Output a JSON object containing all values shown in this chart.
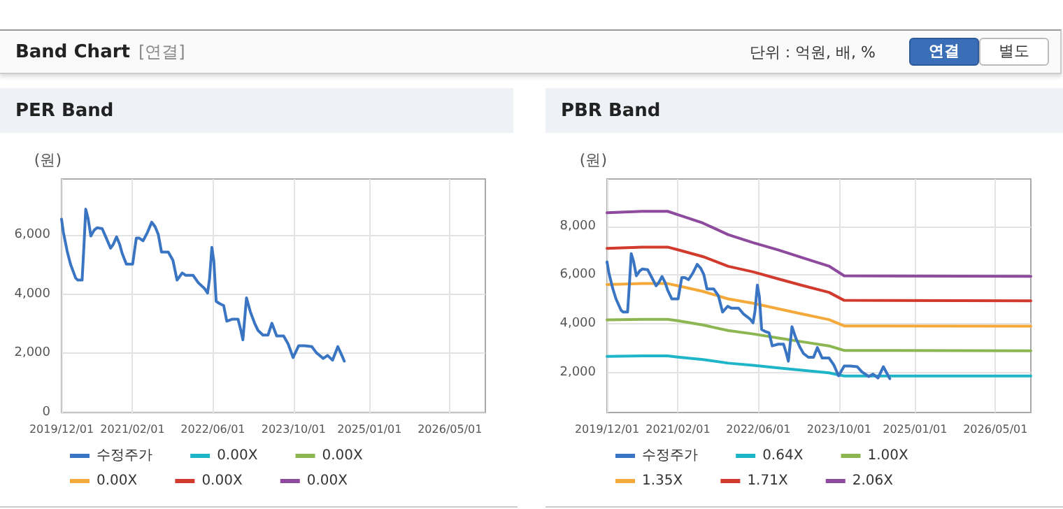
{
  "chart_data": [
    {
      "type": "other",
      "title": "Band Chart",
      "subtitle": "[연결]",
      "annotations": [
        "단위 : 억원, 배, %",
        "연결",
        "별도"
      ]
    },
    {
      "type": "line",
      "title": "PER Band",
      "ylabel": "(원)",
      "grid": true,
      "legend": "bottom",
      "marker": "none",
      "xlim": [
        "2019-12-01",
        "2026-12-01"
      ],
      "xticks": [
        {
          "value": "2019-12-01",
          "label": "2019/12/01"
        },
        {
          "value": "2021-02-01",
          "label": "2021/02/01"
        },
        {
          "value": "2022-06-01",
          "label": "2022/06/01"
        },
        {
          "value": "2023-10-01",
          "label": "2023/10/01"
        },
        {
          "value": "2025-01-01",
          "label": "2025/01/01"
        },
        {
          "value": "2026-05-01",
          "label": "2026/05/01"
        }
      ],
      "ylim": [
        0,
        7900
      ],
      "yticks": [
        {
          "value": 0,
          "label": "0"
        },
        {
          "value": 2000,
          "label": "2,000"
        },
        {
          "value": 4000,
          "label": "4,000"
        },
        {
          "value": 6000,
          "label": "6,000"
        }
      ],
      "series": [
        {
          "name": "수정주가",
          "color": "#3a75c4",
          "x": [
            "2019-12-01",
            "2019-12-12",
            "2020-01-04",
            "2020-01-24",
            "2020-02-24",
            "2020-03-08",
            "2020-04-03",
            "2020-04-14",
            "2020-04-25",
            "2020-05-09",
            "2020-05-26",
            "2020-06-15",
            "2020-07-02",
            "2020-08-02",
            "2020-08-24",
            "2020-09-22",
            "2020-10-09",
            "2020-10-28",
            "2020-11-15",
            "2020-12-01",
            "2020-12-26",
            "2021-02-02",
            "2021-02-24",
            "2021-03-14",
            "2021-04-06",
            "2021-05-03",
            "2021-05-28",
            "2021-06-18",
            "2021-07-07",
            "2021-07-26",
            "2021-09-05",
            "2021-10-03",
            "2021-10-28",
            "2021-11-28",
            "2021-12-20",
            "2022-02-02",
            "2022-03-05",
            "2022-04-11",
            "2022-04-30",
            "2022-05-12",
            "2022-05-26",
            "2022-06-07",
            "2022-06-21",
            "2022-07-10",
            "2022-08-05",
            "2022-08-24",
            "2022-09-28",
            "2022-10-31",
            "2022-11-17",
            "2022-11-29",
            "2022-12-21",
            "2023-01-13",
            "2023-02-08",
            "2023-02-28",
            "2023-03-30",
            "2023-04-30",
            "2023-05-23",
            "2023-06-21",
            "2023-08-02",
            "2023-08-30",
            "2023-09-28",
            "2023-11-01",
            "2023-12-07",
            "2024-01-19",
            "2024-02-16",
            "2024-03-28",
            "2024-04-23",
            "2024-05-23",
            "2024-06-24",
            "2024-07-16",
            "2024-08-02"
          ],
          "values": [
            6540,
            6100,
            5460,
            5020,
            4550,
            4480,
            4480,
            5620,
            6880,
            6570,
            5970,
            6170,
            6250,
            6220,
            5940,
            5560,
            5700,
            5940,
            5700,
            5380,
            5020,
            5020,
            5900,
            5900,
            5810,
            6100,
            6440,
            6280,
            6020,
            5430,
            5430,
            5150,
            4480,
            4720,
            4640,
            4640,
            4390,
            4200,
            4040,
            4520,
            5590,
            5120,
            3760,
            3690,
            3620,
            3090,
            3160,
            3160,
            2780,
            2460,
            3880,
            3410,
            3020,
            2780,
            2620,
            2620,
            3020,
            2590,
            2590,
            2310,
            1860,
            2260,
            2260,
            2230,
            2020,
            1830,
            1930,
            1770,
            2230,
            1960,
            1740
          ]
        },
        {
          "name": "0.00X",
          "color": "#1fb5c8"
        },
        {
          "name": "0.00X",
          "color": "#8cb652"
        },
        {
          "name": "0.00X",
          "color": "#f5a93a"
        },
        {
          "name": "0.00X",
          "color": "#d13a2c"
        },
        {
          "name": "0.00X",
          "color": "#8e4a9c"
        }
      ]
    },
    {
      "type": "line",
      "title": "PBR Band",
      "ylabel": "(원)",
      "grid": true,
      "legend": "bottom",
      "marker": "none",
      "xlim": [
        "2019-12-01",
        "2026-12-01"
      ],
      "xticks": [
        {
          "value": "2019-12-01",
          "label": "2019/12/01"
        },
        {
          "value": "2021-02-01",
          "label": "2021/02/01"
        },
        {
          "value": "2022-06-01",
          "label": "2022/06/01"
        },
        {
          "value": "2023-10-01",
          "label": "2023/10/01"
        },
        {
          "value": "2025-01-01",
          "label": "2025/01/01"
        },
        {
          "value": "2026-05-01",
          "label": "2026/05/01"
        }
      ],
      "ylim": [
        350,
        9950
      ],
      "yticks": [
        {
          "value": 2000,
          "label": "2,000"
        },
        {
          "value": 4000,
          "label": "4,000"
        },
        {
          "value": 6000,
          "label": "6,000"
        },
        {
          "value": 8000,
          "label": "8,000"
        }
      ],
      "series": [
        {
          "name": "수정주가",
          "color": "#3a75c4",
          "x": [
            "2019-12-01",
            "2019-12-12",
            "2020-01-04",
            "2020-01-24",
            "2020-02-24",
            "2020-03-08",
            "2020-04-03",
            "2020-04-14",
            "2020-04-25",
            "2020-05-09",
            "2020-05-26",
            "2020-06-15",
            "2020-07-02",
            "2020-08-02",
            "2020-08-24",
            "2020-09-22",
            "2020-10-09",
            "2020-10-28",
            "2020-11-15",
            "2020-12-01",
            "2020-12-26",
            "2021-02-02",
            "2021-02-24",
            "2021-03-14",
            "2021-04-06",
            "2021-05-03",
            "2021-05-28",
            "2021-06-18",
            "2021-07-07",
            "2021-07-26",
            "2021-09-05",
            "2021-10-03",
            "2021-10-28",
            "2021-11-28",
            "2021-12-20",
            "2022-02-02",
            "2022-03-05",
            "2022-04-11",
            "2022-04-30",
            "2022-05-12",
            "2022-05-26",
            "2022-06-07",
            "2022-06-21",
            "2022-07-10",
            "2022-08-05",
            "2022-08-24",
            "2022-09-28",
            "2022-10-31",
            "2022-11-17",
            "2022-11-29",
            "2022-12-21",
            "2023-01-13",
            "2023-02-08",
            "2023-02-28",
            "2023-03-30",
            "2023-04-30",
            "2023-05-23",
            "2023-06-21",
            "2023-08-02",
            "2023-08-30",
            "2023-09-28",
            "2023-11-01",
            "2023-12-07",
            "2024-01-19",
            "2024-02-16",
            "2024-03-28",
            "2024-04-23",
            "2024-05-23",
            "2024-06-24",
            "2024-07-16",
            "2024-08-02"
          ],
          "values": [
            6540,
            6100,
            5460,
            5020,
            4550,
            4480,
            4480,
            5620,
            6880,
            6570,
            5970,
            6170,
            6250,
            6220,
            5940,
            5560,
            5700,
            5940,
            5700,
            5380,
            5020,
            5020,
            5900,
            5900,
            5810,
            6100,
            6440,
            6280,
            6020,
            5430,
            5430,
            5150,
            4480,
            4720,
            4640,
            4640,
            4390,
            4200,
            4040,
            4520,
            5590,
            5120,
            3760,
            3690,
            3620,
            3090,
            3160,
            3160,
            2780,
            2460,
            3880,
            3410,
            3020,
            2780,
            2620,
            2620,
            3020,
            2590,
            2590,
            2310,
            1860,
            2260,
            2260,
            2230,
            2020,
            1830,
            1930,
            1770,
            2230,
            1960,
            1740
          ]
        },
        {
          "name": "0.64X",
          "color": "#1fb5c8",
          "x": [
            "2019-12-01",
            "2020-07-01",
            "2020-12-01",
            "2021-02-01",
            "2021-07-01",
            "2021-12-01",
            "2022-05-01",
            "2022-10-01",
            "2023-03-01",
            "2023-08-01",
            "2023-11-01",
            "2026-12-01"
          ],
          "values": [
            2660,
            2680,
            2680,
            2630,
            2530,
            2380,
            2290,
            2180,
            2080,
            1980,
            1850,
            1850
          ]
        },
        {
          "name": "1.00X",
          "color": "#8cb652",
          "x": [
            "2019-12-01",
            "2020-07-01",
            "2020-12-01",
            "2021-02-01",
            "2021-07-01",
            "2021-12-01",
            "2022-05-01",
            "2022-10-01",
            "2023-03-01",
            "2023-08-01",
            "2023-11-01",
            "2026-12-01"
          ],
          "values": [
            4160,
            4180,
            4180,
            4120,
            3950,
            3720,
            3580,
            3410,
            3250,
            3090,
            2900,
            2890
          ]
        },
        {
          "name": "1.35X",
          "color": "#f5a93a",
          "x": [
            "2019-12-01",
            "2020-07-01",
            "2020-12-01",
            "2021-02-01",
            "2021-07-01",
            "2021-12-01",
            "2022-05-01",
            "2022-10-01",
            "2023-03-01",
            "2023-08-01",
            "2023-11-01",
            "2026-12-01"
          ],
          "values": [
            5610,
            5650,
            5650,
            5560,
            5330,
            5020,
            4840,
            4610,
            4390,
            4170,
            3910,
            3900
          ]
        },
        {
          "name": "1.71X",
          "color": "#d13a2c",
          "x": [
            "2019-12-01",
            "2020-07-01",
            "2020-12-01",
            "2021-02-01",
            "2021-07-01",
            "2021-12-01",
            "2022-05-01",
            "2022-10-01",
            "2023-03-01",
            "2023-08-01",
            "2023-11-01",
            "2026-12-01"
          ],
          "values": [
            7100,
            7150,
            7150,
            7040,
            6760,
            6360,
            6130,
            5840,
            5560,
            5290,
            4960,
            4940
          ]
        },
        {
          "name": "2.06X",
          "color": "#8e4a9c",
          "x": [
            "2019-12-01",
            "2020-07-01",
            "2020-12-01",
            "2021-02-01",
            "2021-07-01",
            "2021-12-01",
            "2022-05-01",
            "2022-10-01",
            "2023-03-01",
            "2023-08-01",
            "2023-11-01",
            "2026-12-01"
          ],
          "values": [
            8560,
            8620,
            8620,
            8480,
            8140,
            7660,
            7330,
            7030,
            6700,
            6370,
            5970,
            5950
          ]
        }
      ]
    }
  ]
}
